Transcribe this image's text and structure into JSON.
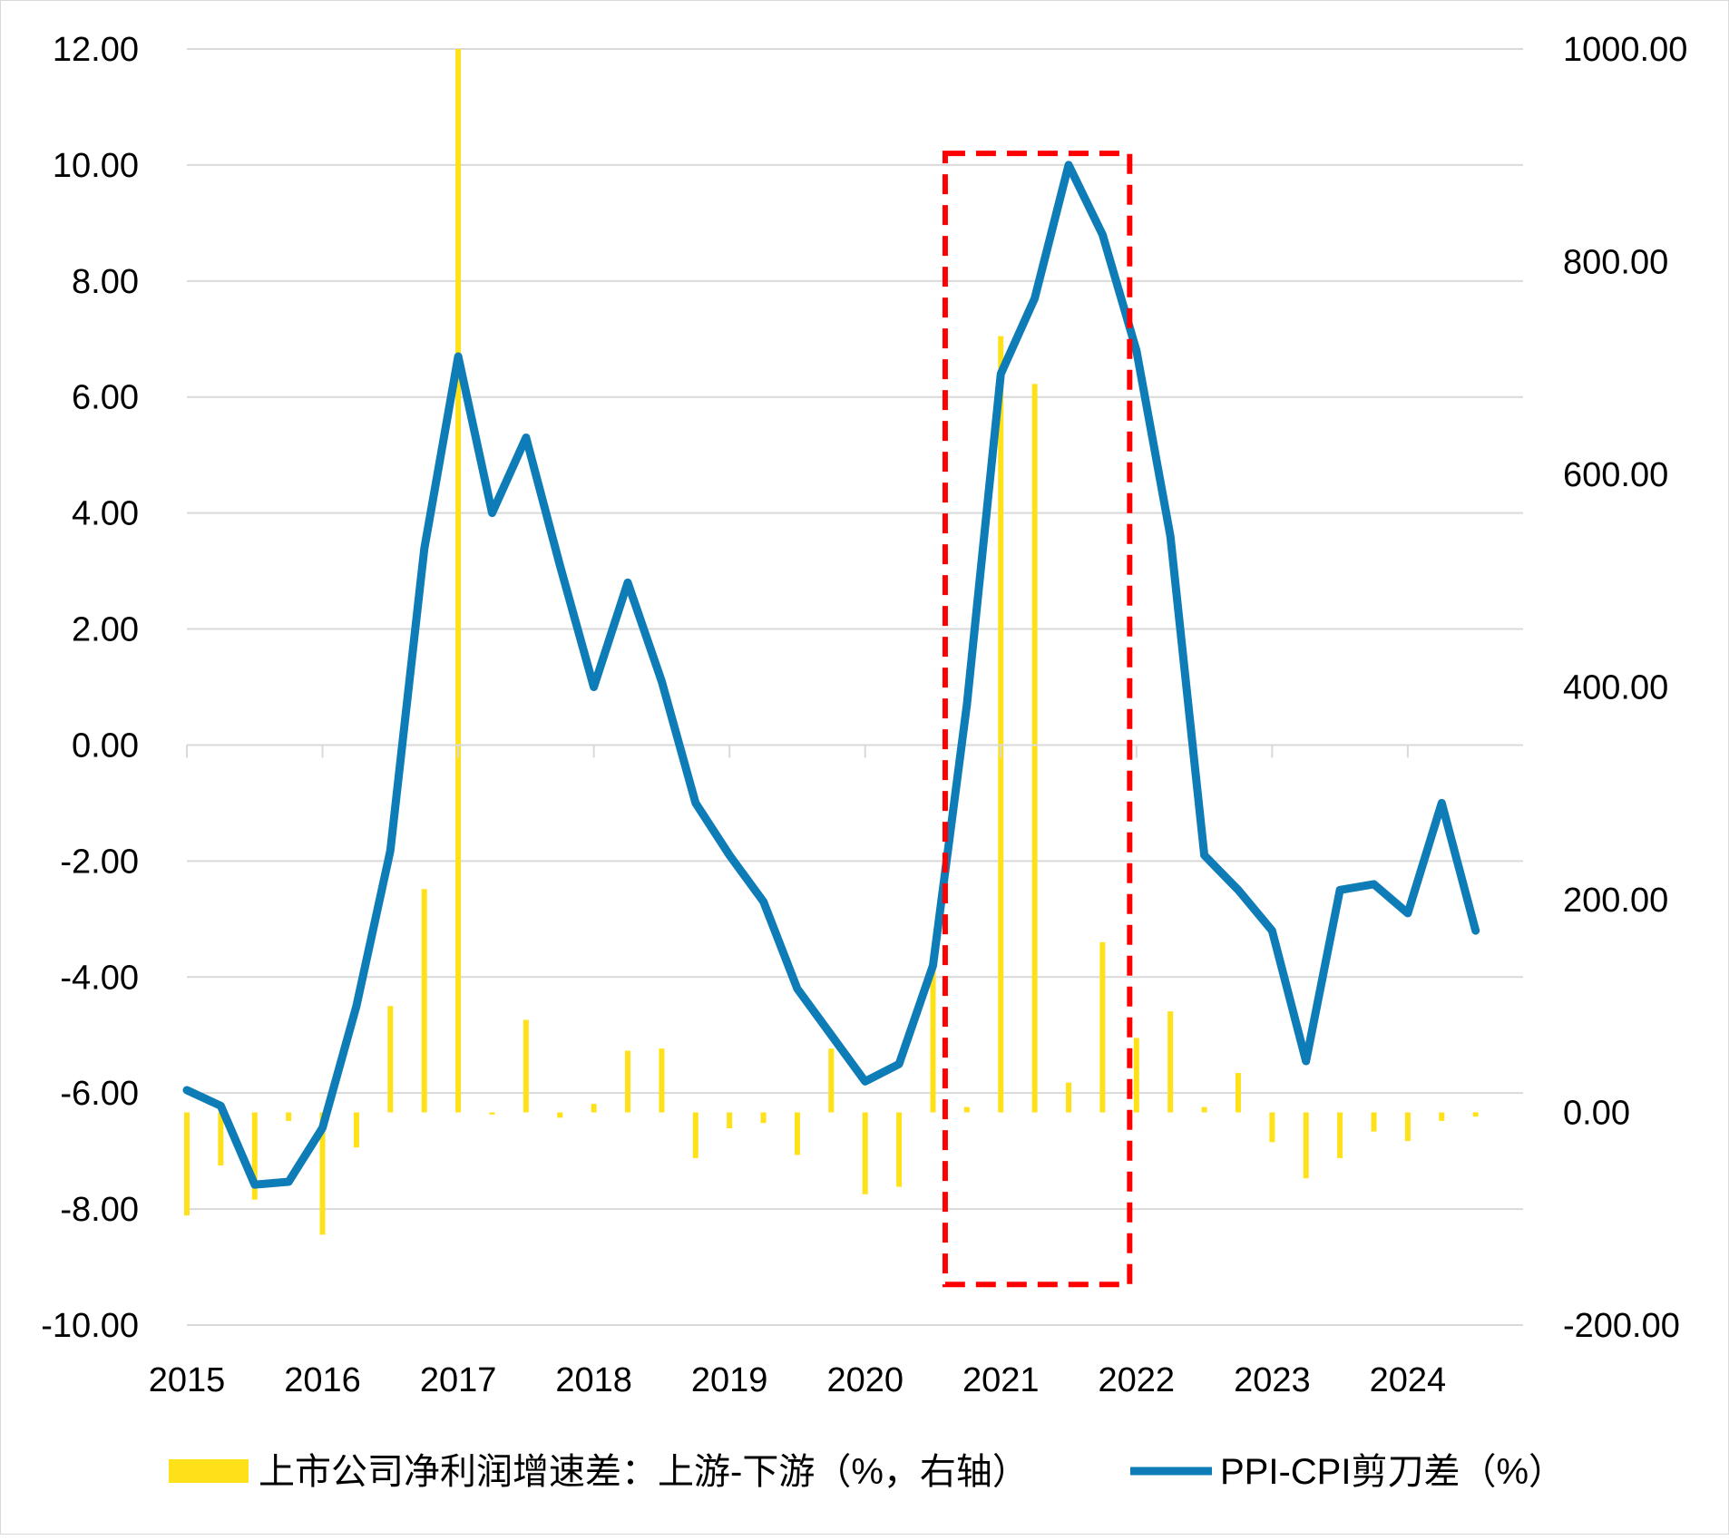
{
  "chart_data": {
    "type": "bar+line",
    "title": "",
    "x_labels": [
      "2015",
      "2016",
      "2017",
      "2018",
      "2019",
      "2020",
      "2021",
      "2022",
      "2023",
      "2024"
    ],
    "left_axis": {
      "ticks": [
        "12.00",
        "10.00",
        "8.00",
        "6.00",
        "4.00",
        "2.00",
        "0.00",
        "-2.00",
        "-4.00",
        "-6.00",
        "-8.00",
        "-10.00"
      ],
      "range": [
        -10,
        12
      ]
    },
    "right_axis": {
      "ticks": [
        "1000.00",
        "800.00",
        "600.00",
        "400.00",
        "200.00",
        "0.00",
        "-200.00"
      ],
      "range": [
        -200,
        1000
      ]
    },
    "grid": true,
    "legend_position": "bottom",
    "x": [
      2015.0,
      2015.25,
      2015.5,
      2015.75,
      2016.0,
      2016.25,
      2016.5,
      2016.75,
      2017.0,
      2017.25,
      2017.5,
      2017.75,
      2018.0,
      2018.25,
      2018.5,
      2018.75,
      2019.0,
      2019.25,
      2019.5,
      2019.75,
      2020.0,
      2020.25,
      2020.5,
      2020.75,
      2021.0,
      2021.25,
      2021.5,
      2021.75,
      2022.0,
      2022.25,
      2022.5,
      2022.75,
      2023.0,
      2023.25,
      2023.5,
      2023.75,
      2024.0,
      2024.25,
      2024.5
    ],
    "series": [
      {
        "name": "上市公司净利润增速差：上游-下游（%，右轴）",
        "type": "bar",
        "axis": "right",
        "color": "#FFE11A",
        "values": [
          -97,
          -50,
          -82,
          -8,
          -115,
          -33,
          100,
          210,
          1000,
          -2,
          87,
          -5,
          8,
          58,
          60,
          -43,
          -15,
          -10,
          -40,
          60,
          -77,
          -70,
          140,
          5,
          730,
          685,
          28,
          160,
          70,
          95,
          5,
          37,
          -28,
          -62,
          -43,
          -18,
          -27,
          -8,
          -4
        ]
      },
      {
        "name": "PPI-CPI剪刀差（%）",
        "type": "line",
        "axis": "left",
        "color": "#0E7CB6",
        "values": [
          -5.95,
          -6.22,
          -7.58,
          -7.53,
          -6.6,
          -4.5,
          -1.82,
          3.38,
          6.7,
          4.0,
          5.3,
          3.1,
          1.0,
          2.8,
          1.1,
          -1.0,
          -1.9,
          -2.7,
          -4.2,
          -5.0,
          -5.8,
          -5.5,
          -3.8,
          0.7,
          6.4,
          7.7,
          10.0,
          8.8,
          6.8,
          3.6,
          -1.9,
          -2.5,
          -3.2,
          -5.45,
          -2.5,
          -2.4,
          -2.9,
          -1.0,
          -3.2
        ]
      }
    ],
    "annotations": [
      {
        "type": "dashed-rectangle",
        "color": "#FF0000",
        "x_range": [
          2020.59,
          2021.95
        ],
        "y_range_left": [
          -9.3,
          10.2
        ]
      }
    ]
  }
}
